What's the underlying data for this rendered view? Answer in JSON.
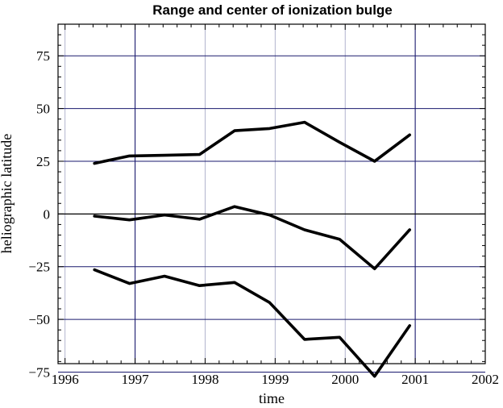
{
  "chart_data": {
    "type": "line",
    "title": "Range and center of ionization bulge",
    "xlabel": "time",
    "ylabel": "heliographic latitude",
    "xlim": [
      1995.9,
      2002.0
    ],
    "ylim": [
      -71,
      90
    ],
    "xticks": [
      1996,
      1997,
      1998,
      1999,
      2000,
      2001,
      2002
    ],
    "yticks": [
      -75,
      -50,
      -25,
      0,
      25,
      50,
      75
    ],
    "grid": true,
    "series": [
      {
        "values": [
          [
            1996.42,
            24
          ],
          [
            1996.92,
            27.5
          ],
          [
            1997.42,
            27.8
          ],
          [
            1997.92,
            28.2
          ],
          [
            1998.42,
            39.5
          ],
          [
            1998.92,
            40.5
          ],
          [
            1999.42,
            43.5
          ],
          [
            1999.92,
            34
          ],
          [
            2000.42,
            25
          ],
          [
            2000.92,
            37.5
          ]
        ]
      },
      {
        "values": [
          [
            1996.42,
            -1
          ],
          [
            1996.92,
            -2.8
          ],
          [
            1997.42,
            -0.5
          ],
          [
            1997.92,
            -2.5
          ],
          [
            1998.42,
            3.5
          ],
          [
            1998.92,
            -0.5
          ],
          [
            1999.42,
            -7.5
          ],
          [
            1999.92,
            -12
          ],
          [
            2000.42,
            -26
          ],
          [
            2000.92,
            -7.5
          ]
        ]
      },
      {
        "values": [
          [
            1996.42,
            -26.5
          ],
          [
            1996.92,
            -33
          ],
          [
            1997.42,
            -29.5
          ],
          [
            1997.92,
            -34
          ],
          [
            1998.42,
            -32.5
          ],
          [
            1998.92,
            -42
          ],
          [
            1999.42,
            -59.5
          ],
          [
            1999.92,
            -58.5
          ],
          [
            2000.42,
            -77
          ],
          [
            2000.92,
            -53
          ]
        ]
      }
    ]
  }
}
